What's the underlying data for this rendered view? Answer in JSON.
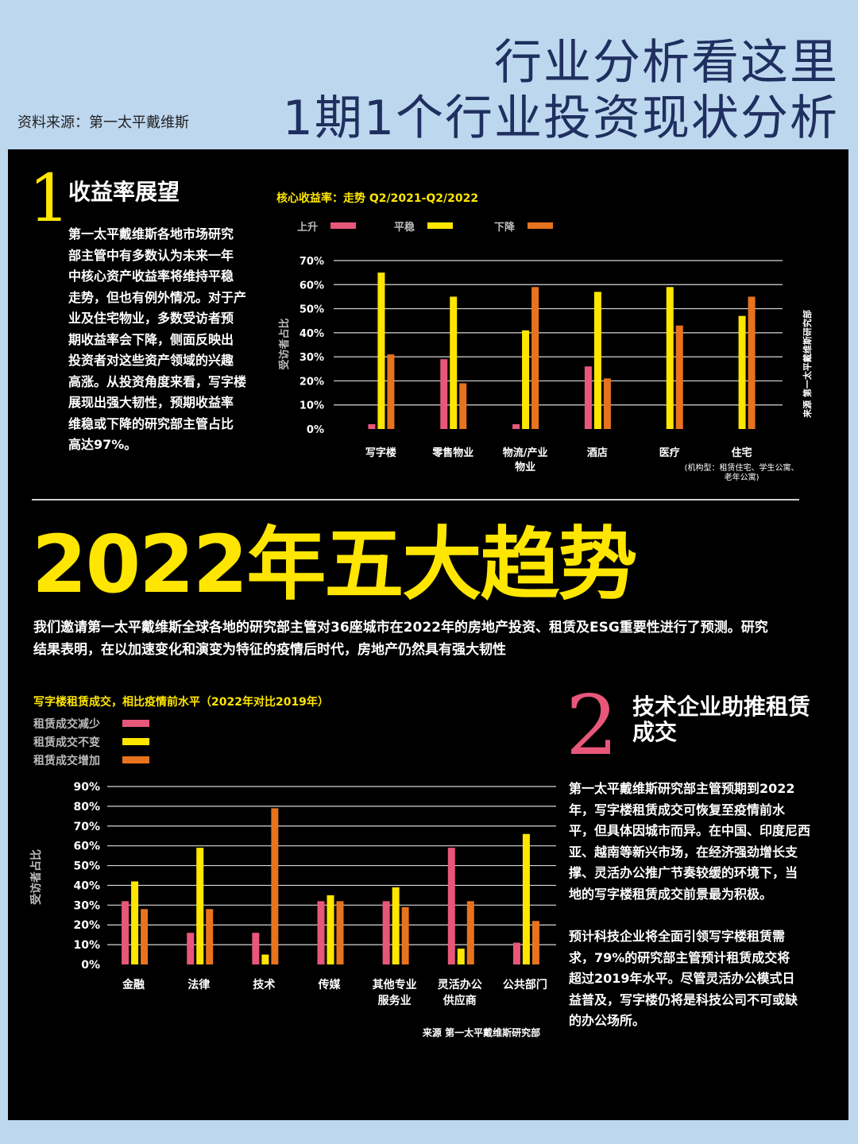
{
  "header": {
    "title_line1": "行业分析看这里",
    "title_line2": "1期1个行业投资现状分析",
    "source": "资料来源：第一太平戴维斯"
  },
  "section1": {
    "number": "1",
    "title": "收益率展望",
    "paragraph": [
      "第一太平戴维斯各地市场研究",
      "部主管中有多数认为未来一年",
      "中核心资产收益率将维持平稳",
      "走势，但也有例外情况。对于产",
      "业及住宅物业，多数受访者预",
      "期收益率会下降，侧面反映出",
      "投资者对这些资产领域的兴趣",
      "高涨。从投资角度来看，写字楼",
      "展现出强大韧性，预期收益率",
      "维稳或下降的研究部主管占比",
      "高达97%。"
    ]
  },
  "banner": {
    "title": "2022年五大趋势",
    "intro_line1": "我们邀请第一太平戴维斯全球各地的研究部主管对36座城市在2022年的房地产投资、租赁及ESG重要性进行了预测。研究",
    "intro_line2": "结果表明，在以加速变化和演变为特征的疫情后时代，房地产仍然具有强大韧性"
  },
  "section2": {
    "number": "2",
    "title_line1": "技术企业助推租赁",
    "title_line2": "成交",
    "paragraph1": [
      "第一太平戴维斯研究部主管预期到2022",
      "年，写字楼租赁成交可恢复至疫情前水",
      "平，但具体因城市而异。在中国、印度尼西",
      "亚、越南等新兴市场，在经济强劲增长支",
      "撑、灵活办公推广节奏较缓的环境下，当",
      "地的写字楼租赁成交前景最为积极。"
    ],
    "paragraph2": [
      "预计科技企业将全面引领写字楼租赁需",
      "求，79%的研究部主管预计租赁成交将",
      "超过2019年水平。尽管灵活办公模式日",
      "益普及，写字楼仍将是科技公司不可或缺",
      "的办公场所。"
    ]
  },
  "colors": {
    "pink": "#e8577a",
    "yellow": "#ffe600",
    "orange": "#e8731e",
    "header_text": "#1f2f5f",
    "background": "#bdd7ee"
  },
  "chart_data": [
    {
      "type": "bar",
      "title": "核心收益率：走势 Q2/2021-Q2/2022",
      "ylabel": "受访者占比",
      "side_note": "来源 第一太平戴维斯研究部",
      "categories": [
        [
          "写字楼"
        ],
        [
          "零售物业"
        ],
        [
          "物流/产业",
          "物业"
        ],
        [
          "酒店"
        ],
        [
          "医疗"
        ],
        [
          "住宅"
        ]
      ],
      "category_note": [
        "(机构型：租赁住宅、学生公寓、",
        "老年公寓)"
      ],
      "yticks": [
        "0%",
        "10%",
        "20%",
        "30%",
        "40%",
        "50%",
        "60%",
        "70%"
      ],
      "ylim": [
        0,
        70
      ],
      "series": [
        {
          "name": "上升",
          "color": "#e8577a",
          "values": [
            2,
            29,
            2,
            26,
            0,
            0
          ]
        },
        {
          "name": "平稳",
          "color": "#ffe600",
          "values": [
            65,
            55,
            41,
            57,
            59,
            47
          ]
        },
        {
          "name": "下降",
          "color": "#e8731e",
          "values": [
            31,
            19,
            59,
            21,
            43,
            55
          ]
        }
      ],
      "legend": "top"
    },
    {
      "type": "bar",
      "title": "写字楼租赁成交，相比疫情前水平（2022年对比2019年）",
      "ylabel": "受访者占比",
      "source": "来源 第一太平戴维斯研究部",
      "categories": [
        [
          "金融"
        ],
        [
          "法律"
        ],
        [
          "技术"
        ],
        [
          "传媒"
        ],
        [
          "其他专业",
          "服务业"
        ],
        [
          "灵活办公",
          "供应商"
        ],
        [
          "公共部门"
        ]
      ],
      "yticks": [
        "0%",
        "10%",
        "20%",
        "30%",
        "40%",
        "50%",
        "60%",
        "70%",
        "80%",
        "90%"
      ],
      "ylim": [
        0,
        90
      ],
      "series": [
        {
          "name": "租赁成交减少",
          "color": "#e8577a",
          "values": [
            32,
            16,
            16,
            32,
            32,
            59,
            11
          ]
        },
        {
          "name": "租赁成交不变",
          "color": "#ffe600",
          "values": [
            42,
            59,
            5,
            35,
            39,
            8,
            66
          ]
        },
        {
          "name": "租赁成交增加",
          "color": "#e8731e",
          "values": [
            28,
            28,
            79,
            32,
            29,
            32,
            22
          ]
        }
      ],
      "legend": "top-left"
    }
  ]
}
